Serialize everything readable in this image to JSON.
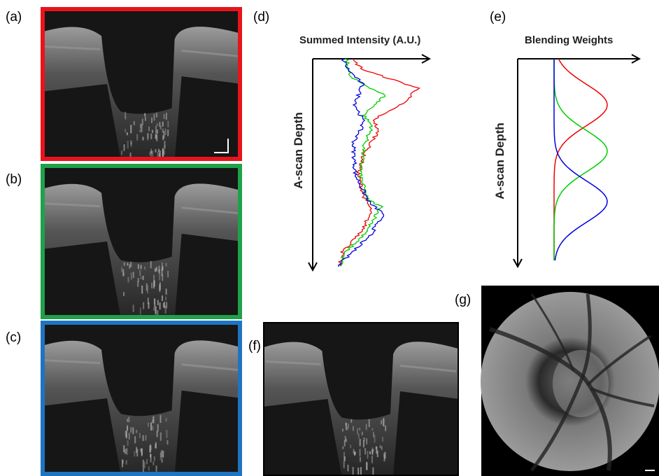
{
  "panels": {
    "a": "(a)",
    "b": "(b)",
    "c": "(c)",
    "d": "(d)",
    "e": "(e)",
    "f": "(f)",
    "g": "(g)"
  },
  "plot_d": {
    "x_axis": "Summed Intensity (A.U.)",
    "y_axis": "A-scan Depth"
  },
  "plot_e": {
    "x_axis": "Blending Weights",
    "y_axis": "A-scan Depth"
  }
}
